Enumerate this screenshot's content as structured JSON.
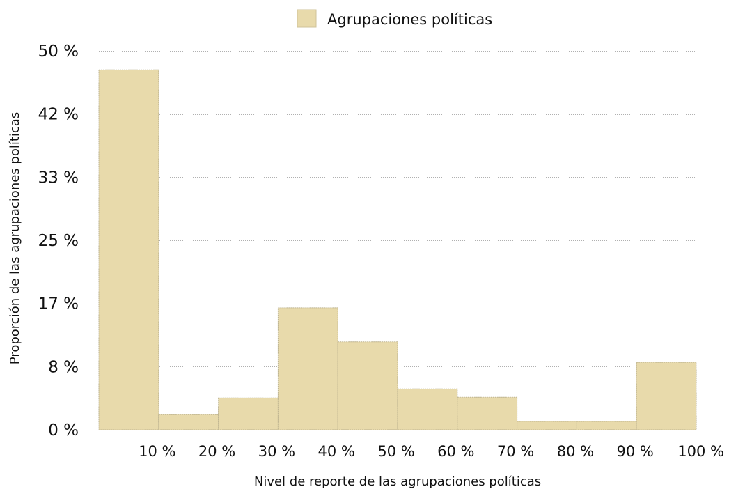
{
  "chart_data": {
    "type": "bar",
    "title": "",
    "legend": {
      "position": "top-center",
      "entries": [
        "Agrupaciones políticas"
      ]
    },
    "series": [
      {
        "name": "Agrupaciones políticas",
        "color": "#E8DAAB",
        "bins": [
          {
            "from": 0,
            "to": 10,
            "value": 47.5
          },
          {
            "from": 10,
            "to": 20,
            "value": 2.0
          },
          {
            "from": 20,
            "to": 30,
            "value": 4.2
          },
          {
            "from": 30,
            "to": 40,
            "value": 16.1
          },
          {
            "from": 40,
            "to": 50,
            "value": 11.6
          },
          {
            "from": 50,
            "to": 60,
            "value": 5.4
          },
          {
            "from": 60,
            "to": 70,
            "value": 4.3
          },
          {
            "from": 70,
            "to": 80,
            "value": 1.1
          },
          {
            "from": 80,
            "to": 90,
            "value": 1.1
          },
          {
            "from": 90,
            "to": 100,
            "value": 8.9
          }
        ]
      }
    ],
    "xlabel": "Nivel de reporte de las agrupaciones políticas",
    "ylabel": "Proporción de las agrupaciones políticas",
    "xlim": [
      0,
      100
    ],
    "ylim": [
      0,
      50
    ],
    "x_tick_labels": [
      {
        "value": 10,
        "label": "10 %"
      },
      {
        "value": 20,
        "label": "20 %"
      },
      {
        "value": 30,
        "label": "30 %"
      },
      {
        "value": 40,
        "label": "40 %"
      },
      {
        "value": 50,
        "label": "50 %"
      },
      {
        "value": 60,
        "label": "60 %"
      },
      {
        "value": 70,
        "label": "70 %"
      },
      {
        "value": 80,
        "label": "80 %"
      },
      {
        "value": 90,
        "label": "90 %"
      },
      {
        "value": 100,
        "label": "100 %"
      }
    ],
    "y_tick_labels": [
      {
        "value": 0,
        "label": "0 %"
      },
      {
        "value": 8.33,
        "label": "8 %"
      },
      {
        "value": 16.67,
        "label": "17 %"
      },
      {
        "value": 25,
        "label": "25 %"
      },
      {
        "value": 33.33,
        "label": "33 %"
      },
      {
        "value": 41.67,
        "label": "42 %"
      },
      {
        "value": 50,
        "label": "50 %"
      }
    ],
    "grid": {
      "horizontal": true,
      "vertical": false,
      "style": "dotted"
    }
  }
}
